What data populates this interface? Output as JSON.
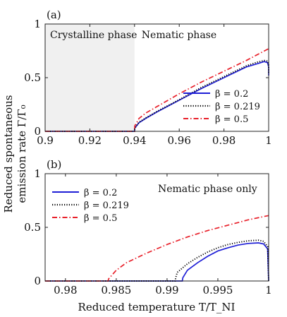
{
  "y_axis_label_line1": "Reduced spontaneous",
  "y_axis_label_line2": "emission rate Γ/Γ₀",
  "x_axis_label": "Reduced temperature T/T_NI",
  "colors": {
    "s02": "#1f1fd6",
    "s0219": "#000000",
    "s05": "#e8202a",
    "shade": "#f0f0f0"
  },
  "chart_data": [
    {
      "type": "line",
      "panel_label": "(a)",
      "xlim": [
        0.9,
        1.0
      ],
      "ylim": [
        0,
        1
      ],
      "xticks": [
        0.9,
        0.92,
        0.94,
        0.96,
        0.98,
        1
      ],
      "xtick_labels": [
        "0.9",
        "0.92",
        "0.94",
        "0.96",
        "0.98",
        "1"
      ],
      "yticks": [
        0,
        0.5,
        1
      ],
      "ytick_labels": [
        "0",
        "0.5",
        "1"
      ],
      "shaded_region": {
        "x": [
          0.9,
          0.94
        ],
        "label": "Crystalline phase"
      },
      "region_label_right": "Nematic phase",
      "legend_position": "bottom-right",
      "series": [
        {
          "name": "β = 0.2",
          "color_key": "s02",
          "dash": "solid",
          "x": [
            0.9,
            0.94,
            0.9401,
            0.942,
            0.945,
            0.95,
            0.96,
            0.97,
            0.98,
            0.99,
            0.995,
            0.998,
            0.9995,
            0.99999,
            1.0
          ],
          "y": [
            0,
            0,
            0.03,
            0.08,
            0.12,
            0.18,
            0.29,
            0.4,
            0.5,
            0.6,
            0.63,
            0.65,
            0.64,
            0.6,
            0.52
          ]
        },
        {
          "name": "β = 0.219",
          "color_key": "s0219",
          "dash": "dotted",
          "x": [
            0.9,
            0.94,
            0.9401,
            0.942,
            0.945,
            0.95,
            0.96,
            0.97,
            0.98,
            0.99,
            0.995,
            0.998,
            0.9995,
            0.99999,
            1.0
          ],
          "y": [
            0,
            0,
            0.03,
            0.085,
            0.125,
            0.185,
            0.295,
            0.41,
            0.51,
            0.61,
            0.645,
            0.66,
            0.655,
            0.62,
            0.54
          ]
        },
        {
          "name": "β = 0.5",
          "color_key": "s05",
          "dash": "dashdot",
          "x": [
            0.9,
            0.94,
            0.9401,
            0.942,
            0.945,
            0.95,
            0.96,
            0.97,
            0.98,
            0.99,
            1.0
          ],
          "y": [
            0,
            0,
            0.05,
            0.12,
            0.17,
            0.23,
            0.35,
            0.46,
            0.56,
            0.66,
            0.77
          ]
        }
      ]
    },
    {
      "type": "line",
      "panel_label": "(b)",
      "xlim": [
        0.978,
        1.0
      ],
      "ylim": [
        0,
        1
      ],
      "xticks": [
        0.98,
        0.985,
        0.99,
        0.995,
        1
      ],
      "xtick_labels": [
        "0.98",
        "0.985",
        "0.99",
        "0.995",
        "1"
      ],
      "yticks": [
        0,
        0.5,
        1
      ],
      "ytick_labels": [
        "0",
        "0.5",
        "1"
      ],
      "annotation": "Nematic phase only",
      "legend_position": "top-left",
      "series": [
        {
          "name": "β = 0.2",
          "color_key": "s02",
          "dash": "solid",
          "x": [
            0.978,
            0.9915,
            0.99155,
            0.992,
            0.993,
            0.994,
            0.995,
            0.996,
            0.997,
            0.998,
            0.999,
            0.9995,
            0.9999,
            1.0
          ],
          "y": [
            0,
            0,
            0.03,
            0.1,
            0.17,
            0.23,
            0.28,
            0.31,
            0.335,
            0.35,
            0.355,
            0.345,
            0.3,
            0.0
          ]
        },
        {
          "name": "β = 0.219",
          "color_key": "s0219",
          "dash": "dotted",
          "x": [
            0.978,
            0.9908,
            0.99085,
            0.991,
            0.992,
            0.993,
            0.994,
            0.995,
            0.996,
            0.997,
            0.998,
            0.999,
            0.9995,
            0.9999,
            1.0
          ],
          "y": [
            0,
            0,
            0.03,
            0.08,
            0.16,
            0.22,
            0.27,
            0.31,
            0.34,
            0.36,
            0.375,
            0.38,
            0.37,
            0.32,
            0.0
          ]
        },
        {
          "name": "β = 0.5",
          "color_key": "s05",
          "dash": "dashdot",
          "x": [
            0.978,
            0.9842,
            0.98425,
            0.985,
            0.986,
            0.988,
            0.99,
            0.992,
            0.994,
            0.996,
            0.998,
            1.0
          ],
          "y": [
            0,
            0,
            0.02,
            0.1,
            0.17,
            0.26,
            0.34,
            0.41,
            0.47,
            0.52,
            0.57,
            0.61
          ]
        }
      ]
    }
  ]
}
